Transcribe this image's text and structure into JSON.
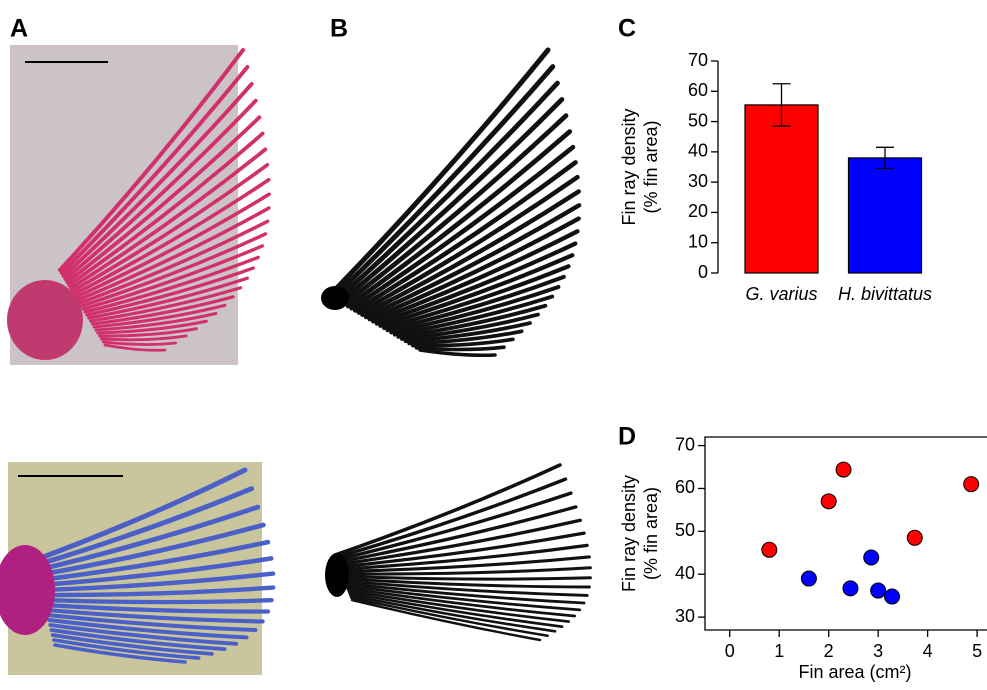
{
  "panel_labels": [
    "A",
    "B",
    "C",
    "D"
  ],
  "chart_data": [
    {
      "type": "bar",
      "categories": [
        "G. varius",
        "H. bivittatus"
      ],
      "values": [
        55.5,
        38
      ],
      "errors": [
        7,
        3.5
      ],
      "colors": [
        "#ff0000",
        "#0000ff"
      ],
      "y_label": [
        "Fin ray density",
        "(% fin area)"
      ],
      "ylim": [
        0,
        70
      ],
      "yticks": [
        0,
        10,
        20,
        30,
        40,
        50,
        60,
        70
      ]
    },
    {
      "type": "scatter",
      "x_label": "Fin area (cm²)",
      "y_label": [
        "Fin ray density",
        "(% fin area)"
      ],
      "series": [
        {
          "color": "#ff0000",
          "x": [
            0.8,
            2.0,
            2.3,
            3.74,
            4.88
          ],
          "values": [
            45.7,
            57,
            64.4,
            48.5,
            61
          ]
        },
        {
          "color": "#0000ff",
          "x": [
            1.6,
            2.44,
            2.86,
            3.0,
            3.28
          ],
          "values": [
            39,
            36.7,
            43.9,
            36.2,
            34.8
          ]
        }
      ],
      "xlim": [
        -0.5,
        5.2
      ],
      "xticks": [
        0,
        1,
        2,
        3,
        4,
        5
      ],
      "ylim": [
        27,
        72
      ],
      "yticks": [
        30,
        40,
        50,
        60,
        70
      ]
    }
  ]
}
